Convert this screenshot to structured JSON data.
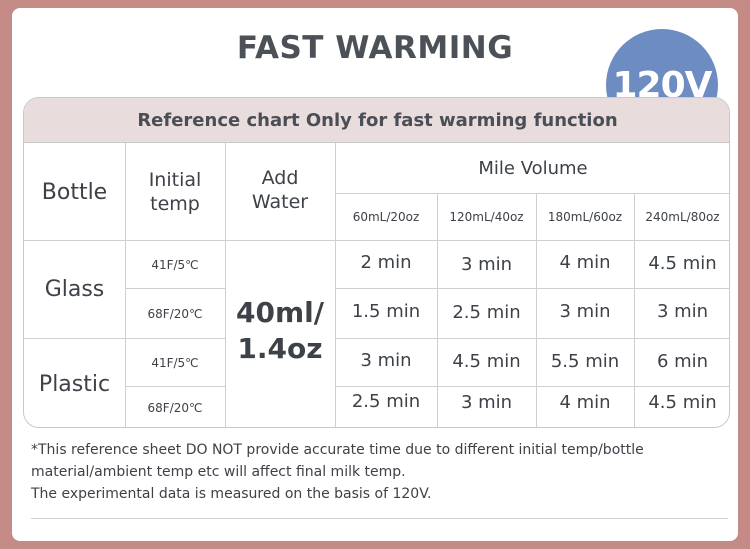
{
  "header": {
    "title": "FAST WARMING",
    "badge": "120V"
  },
  "table": {
    "subtitle": "Reference chart Only for fast warming function",
    "col_bottle": "Bottle",
    "col_initial_line1": "Initial",
    "col_initial_line2": "temp",
    "col_add_line1": "Add",
    "col_add_line2": "Water",
    "col_volume": "Mile Volume",
    "volumes": [
      "60mL/20oz",
      "120mL/40oz",
      "180mL/60oz",
      "240mL/80oz"
    ],
    "add_water_line1": "40ml/",
    "add_water_line2": "1.4oz",
    "groups": [
      {
        "material": "Glass",
        "rows": [
          {
            "temp": "41F/5℃",
            "times": [
              "2 min",
              "3 min",
              "4 min",
              "4.5 min"
            ]
          },
          {
            "temp": "68F/20℃",
            "times": [
              "1.5 min",
              "2.5 min",
              "3 min",
              "3 min"
            ]
          }
        ]
      },
      {
        "material": "Plastic",
        "rows": [
          {
            "temp": "41F/5℃",
            "times": [
              "3 min",
              "4.5 min",
              "5.5 min",
              "6 min"
            ]
          },
          {
            "temp": "68F/20℃",
            "times": [
              "2.5 min",
              "3 min",
              "4 min",
              "4.5 min"
            ]
          }
        ]
      }
    ]
  },
  "notes": [
    "*This reference sheet DO NOT provide accurate time due to different  initial temp/bottle",
    "material/ambient temp etc will affect final milk temp.",
    "The experimental data is measured on the basis of 120V."
  ]
}
